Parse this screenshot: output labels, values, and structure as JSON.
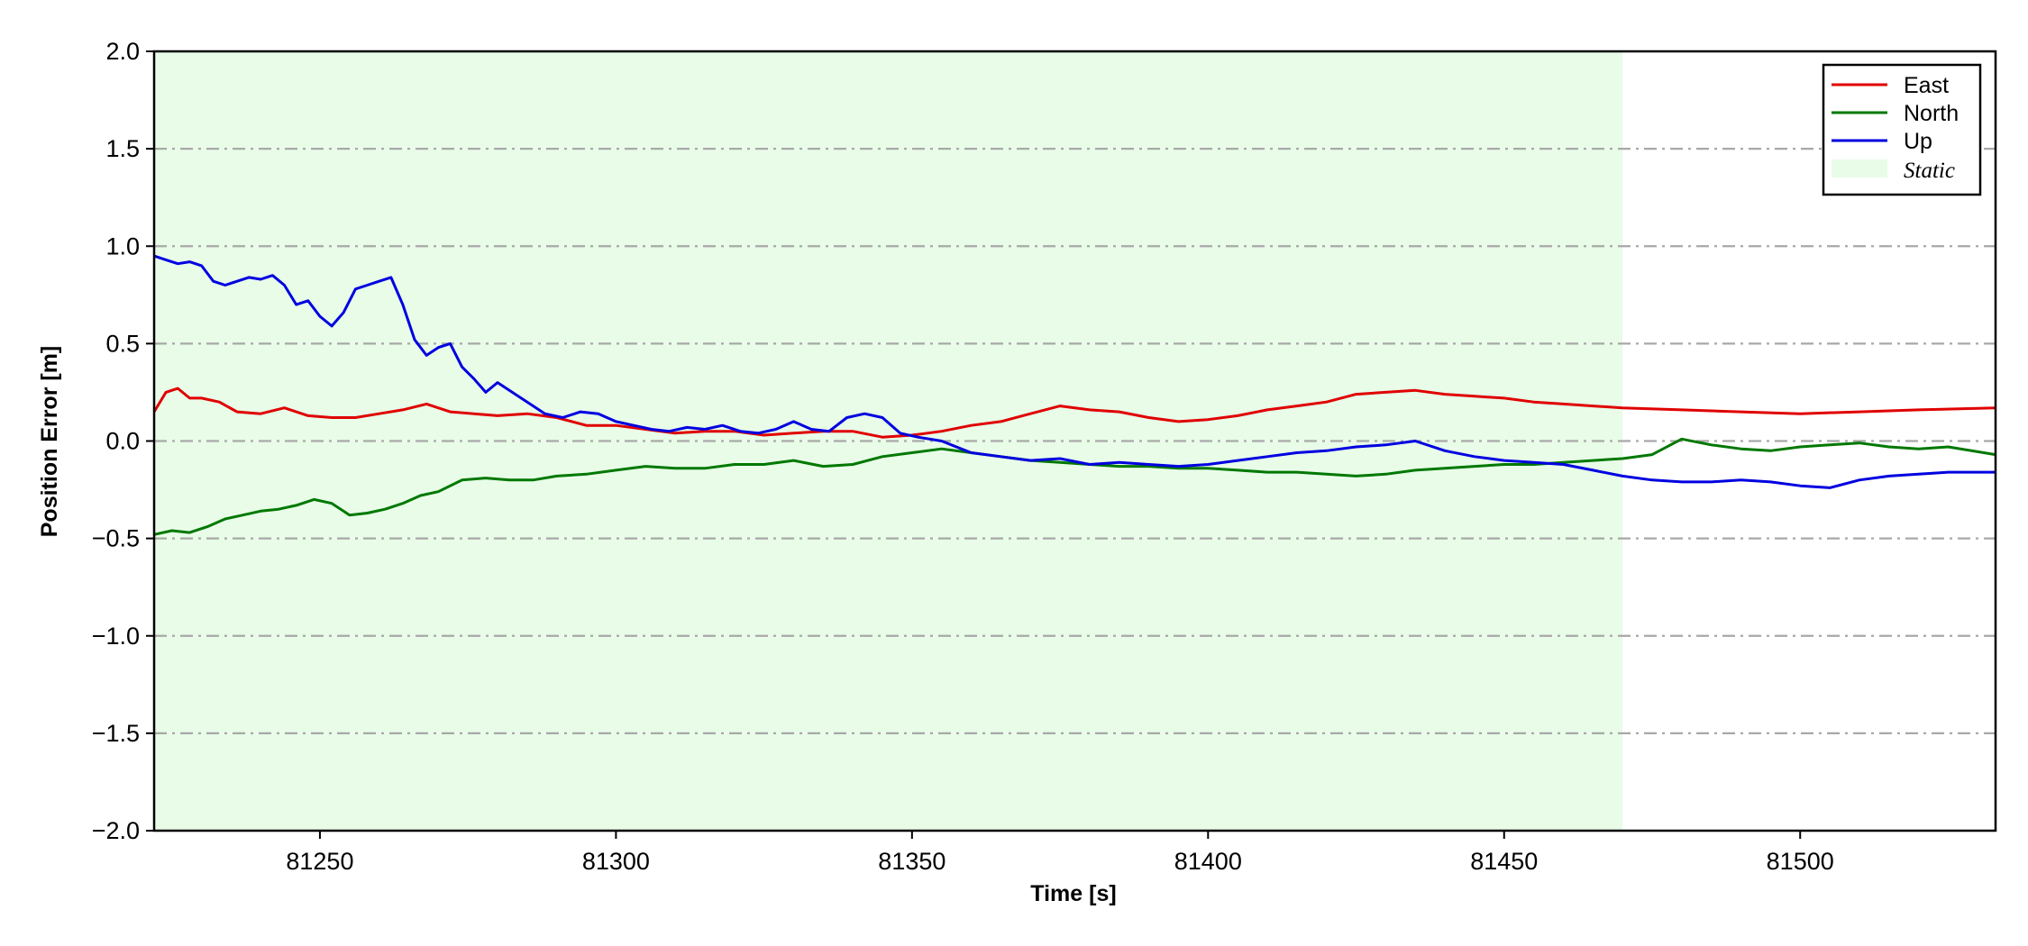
{
  "chart_data": {
    "type": "line",
    "title": "",
    "xlabel": "Time [s]",
    "ylabel": "Position Error [m]",
    "xlim": [
      81222,
      81533
    ],
    "ylim": [
      -2.0,
      2.0
    ],
    "x_ticks": [
      81250,
      81300,
      81350,
      81400,
      81450,
      81500
    ],
    "x_tick_labels": [
      "81250",
      "81300",
      "81350",
      "81400",
      "81450",
      "81500"
    ],
    "y_ticks": [
      2.0,
      1.5,
      1.0,
      0.5,
      0.0,
      -0.5,
      -1.0,
      -1.5,
      -2.0
    ],
    "y_tick_labels": [
      "2.0",
      "1.5",
      "1.0",
      "0.5",
      "0.0",
      "−0.5",
      "−1.0",
      "−1.5",
      "−2.0"
    ],
    "grid": "horizontal dash-dot",
    "legend_position": "top-right",
    "static_region": {
      "label": "Static",
      "x_start": 81222,
      "x_end": 81470,
      "color": "#e8fce8"
    },
    "series": [
      {
        "name": "East",
        "color": "#e00000",
        "x": [
          81222,
          81224,
          81226,
          81228,
          81230,
          81233,
          81236,
          81240,
          81244,
          81248,
          81252,
          81256,
          81260,
          81264,
          81268,
          81272,
          81276,
          81280,
          81285,
          81290,
          81295,
          81300,
          81305,
          81310,
          81315,
          81320,
          81325,
          81330,
          81335,
          81340,
          81345,
          81350,
          81355,
          81360,
          81365,
          81370,
          81375,
          81380,
          81385,
          81390,
          81395,
          81400,
          81405,
          81410,
          81415,
          81420,
          81425,
          81430,
          81435,
          81440,
          81445,
          81450,
          81455,
          81460,
          81465,
          81470,
          81480,
          81490,
          81500,
          81510,
          81520,
          81533
        ],
        "y": [
          0.15,
          0.25,
          0.27,
          0.22,
          0.22,
          0.2,
          0.15,
          0.14,
          0.17,
          0.13,
          0.12,
          0.12,
          0.14,
          0.16,
          0.19,
          0.15,
          0.14,
          0.13,
          0.14,
          0.12,
          0.08,
          0.08,
          0.06,
          0.04,
          0.05,
          0.05,
          0.03,
          0.04,
          0.05,
          0.05,
          0.02,
          0.03,
          0.05,
          0.08,
          0.1,
          0.14,
          0.18,
          0.16,
          0.15,
          0.12,
          0.1,
          0.11,
          0.13,
          0.16,
          0.18,
          0.2,
          0.24,
          0.25,
          0.26,
          0.24,
          0.23,
          0.22,
          0.2,
          0.19,
          0.18,
          0.17,
          0.16,
          0.15,
          0.14,
          0.15,
          0.16,
          0.17
        ]
      },
      {
        "name": "North",
        "color": "#007800",
        "x": [
          81222,
          81225,
          81228,
          81231,
          81234,
          81237,
          81240,
          81243,
          81246,
          81249,
          81252,
          81255,
          81258,
          81261,
          81264,
          81267,
          81270,
          81274,
          81278,
          81282,
          81286,
          81290,
          81295,
          81300,
          81305,
          81310,
          81315,
          81320,
          81325,
          81330,
          81335,
          81340,
          81345,
          81350,
          81355,
          81360,
          81365,
          81370,
          81375,
          81380,
          81385,
          81390,
          81395,
          81400,
          81405,
          81410,
          81415,
          81420,
          81425,
          81430,
          81435,
          81440,
          81445,
          81450,
          81455,
          81460,
          81465,
          81470,
          81475,
          81480,
          81485,
          81490,
          81495,
          81500,
          81505,
          81510,
          81515,
          81520,
          81525,
          81533
        ],
        "y": [
          -0.48,
          -0.46,
          -0.47,
          -0.44,
          -0.4,
          -0.38,
          -0.36,
          -0.35,
          -0.33,
          -0.3,
          -0.32,
          -0.38,
          -0.37,
          -0.35,
          -0.32,
          -0.28,
          -0.26,
          -0.2,
          -0.19,
          -0.2,
          -0.2,
          -0.18,
          -0.17,
          -0.15,
          -0.13,
          -0.14,
          -0.14,
          -0.12,
          -0.12,
          -0.1,
          -0.13,
          -0.12,
          -0.08,
          -0.06,
          -0.04,
          -0.06,
          -0.08,
          -0.1,
          -0.11,
          -0.12,
          -0.13,
          -0.13,
          -0.14,
          -0.14,
          -0.15,
          -0.16,
          -0.16,
          -0.17,
          -0.18,
          -0.17,
          -0.15,
          -0.14,
          -0.13,
          -0.12,
          -0.12,
          -0.11,
          -0.1,
          -0.09,
          -0.07,
          0.01,
          -0.02,
          -0.04,
          -0.05,
          -0.03,
          -0.02,
          -0.01,
          -0.03,
          -0.04,
          -0.03,
          -0.07
        ]
      },
      {
        "name": "Up",
        "color": "#0000e0",
        "x": [
          81222,
          81224,
          81226,
          81228,
          81230,
          81232,
          81234,
          81236,
          81238,
          81240,
          81242,
          81244,
          81246,
          81248,
          81250,
          81252,
          81254,
          81256,
          81258,
          81260,
          81262,
          81264,
          81266,
          81268,
          81270,
          81272,
          81274,
          81276,
          81278,
          81280,
          81282,
          81285,
          81288,
          81291,
          81294,
          81297,
          81300,
          81303,
          81306,
          81309,
          81312,
          81315,
          81318,
          81321,
          81324,
          81327,
          81330,
          81333,
          81336,
          81339,
          81342,
          81345,
          81348,
          81351,
          81355,
          81360,
          81365,
          81370,
          81375,
          81380,
          81385,
          81390,
          81395,
          81400,
          81405,
          81410,
          81415,
          81420,
          81425,
          81430,
          81435,
          81440,
          81445,
          81450,
          81455,
          81460,
          81465,
          81470,
          81475,
          81480,
          81485,
          81490,
          81495,
          81500,
          81505,
          81510,
          81515,
          81520,
          81525,
          81533
        ],
        "y": [
          0.95,
          0.93,
          0.91,
          0.92,
          0.9,
          0.82,
          0.8,
          0.82,
          0.84,
          0.83,
          0.85,
          0.8,
          0.7,
          0.72,
          0.64,
          0.59,
          0.66,
          0.78,
          0.8,
          0.82,
          0.84,
          0.7,
          0.52,
          0.44,
          0.48,
          0.5,
          0.38,
          0.32,
          0.25,
          0.3,
          0.26,
          0.2,
          0.14,
          0.12,
          0.15,
          0.14,
          0.1,
          0.08,
          0.06,
          0.05,
          0.07,
          0.06,
          0.08,
          0.05,
          0.04,
          0.06,
          0.1,
          0.06,
          0.05,
          0.12,
          0.14,
          0.12,
          0.04,
          0.02,
          0.0,
          -0.06,
          -0.08,
          -0.1,
          -0.09,
          -0.12,
          -0.11,
          -0.12,
          -0.13,
          -0.12,
          -0.1,
          -0.08,
          -0.06,
          -0.05,
          -0.03,
          -0.02,
          0.0,
          -0.05,
          -0.08,
          -0.1,
          -0.11,
          -0.12,
          -0.15,
          -0.18,
          -0.2,
          -0.21,
          -0.21,
          -0.2,
          -0.21,
          -0.23,
          -0.24,
          -0.2,
          -0.18,
          -0.17,
          -0.16,
          -0.16
        ]
      }
    ]
  }
}
